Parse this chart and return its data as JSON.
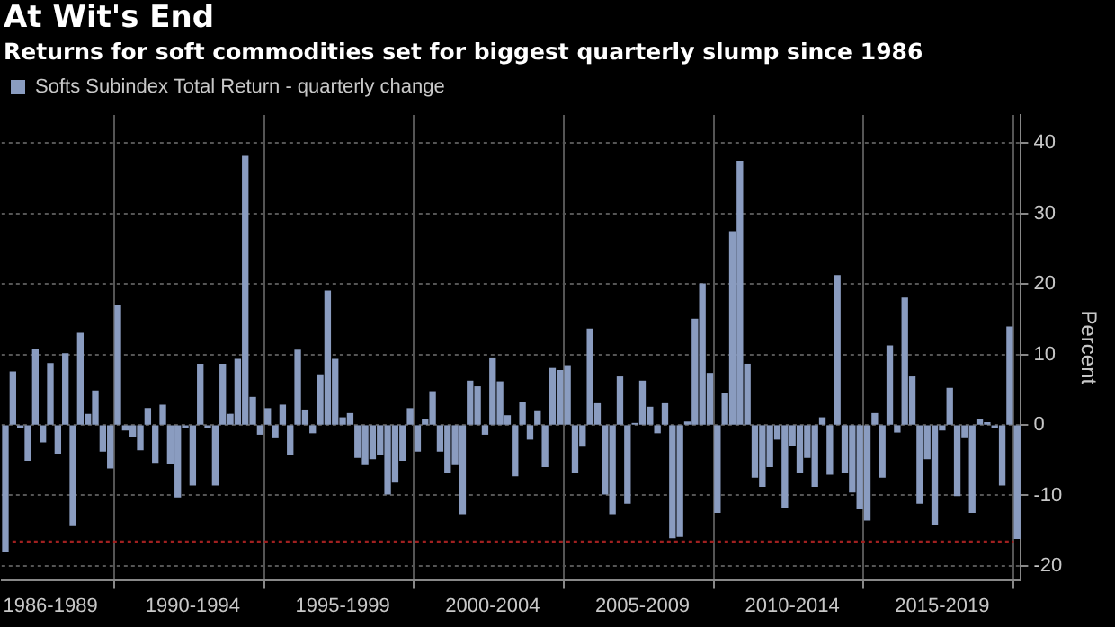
{
  "chart_data": {
    "type": "bar",
    "title": "At Wit's End",
    "subtitle": "Returns for soft commodities set for biggest quarterly slump since 1986",
    "ylabel": "Percent",
    "categories": [
      null,
      null,
      null,
      null,
      null,
      null,
      "1986-1989",
      null,
      null,
      null,
      null,
      null,
      null,
      null,
      null,
      null,
      null,
      null,
      null,
      null,
      null,
      null,
      null,
      null,
      null,
      "1990-1994",
      null,
      null,
      null,
      null,
      null,
      null,
      null,
      null,
      null,
      null,
      null,
      null,
      null,
      null,
      null,
      null,
      null,
      null,
      null,
      "1995-1999",
      null,
      null,
      null,
      null,
      null,
      null,
      null,
      null,
      null,
      null,
      null,
      null,
      null,
      null,
      null,
      null,
      null,
      null,
      null,
      "2000-2004",
      null,
      null,
      null,
      null,
      null,
      null,
      null,
      null,
      null,
      null,
      null,
      null,
      null,
      null,
      null,
      null,
      null,
      null,
      null,
      "2005-2009",
      null,
      null,
      null,
      null,
      null,
      null,
      null,
      null,
      null,
      null,
      null,
      null,
      null,
      null,
      null,
      null,
      null,
      null,
      null,
      "2010-2014",
      null,
      null,
      null,
      null,
      null,
      null,
      null,
      null,
      null,
      null,
      null,
      null,
      null,
      null,
      null,
      null,
      null,
      null,
      null,
      "2015-2019",
      null,
      null,
      null,
      null,
      null,
      null,
      null,
      null,
      null,
      null
    ],
    "series": [
      {
        "name": "Softs Subindex Total Return - quarterly change",
        "color": "#8a9cc0",
        "values": [
          -18,
          7.5,
          -0.4,
          -5,
          10.7,
          -2.4,
          8.7,
          -4,
          10.1,
          -14.3,
          13,
          1.5,
          4.8,
          -3.7,
          -6.1,
          17,
          -0.7,
          -1.7,
          -3.5,
          2.3,
          -5.3,
          2.8,
          -5.5,
          -10.2,
          -0.4,
          -8.5,
          8.6,
          -0.4,
          -8.5,
          8.6,
          1.5,
          9.3,
          38.1,
          3.9,
          -1.3,
          2.3,
          -1.8,
          2.8,
          -4.2,
          10.6,
          2.1,
          -1.1,
          7.1,
          19,
          9.3,
          1,
          1.6,
          -4.6,
          -5.6,
          -4.8,
          -4.2,
          -9.8,
          -8.1,
          -5,
          2.3,
          -3.7,
          0.8,
          4.7,
          -3.7,
          -6.8,
          -5.6,
          -12.6,
          6.2,
          5.4,
          -1.3,
          9.5,
          6.1,
          1.3,
          -7.2,
          3.2,
          -2,
          2,
          -5.9,
          8,
          7.7,
          8.4,
          -6.8,
          -3,
          13.6,
          3,
          -9.8,
          -12.6,
          6.8,
          -11.1,
          0.2,
          6.2,
          2.5,
          -1.1,
          3,
          -16,
          -15.8,
          0.4,
          15,
          20,
          7.3,
          -12.4,
          4.5,
          27.4,
          37.4,
          8.6,
          -7.4,
          -8.7,
          -5.9,
          -2,
          -11.7,
          -2.9,
          -6.8,
          -4.6,
          -8.7,
          1,
          -7,
          21.2,
          -6.8,
          -9.5,
          -11.9,
          -13.5,
          1.6,
          -7.4,
          11.2,
          -1,
          18,
          6.8,
          -11.1,
          -4.8,
          -14.1,
          -0.7,
          5.2,
          -10,
          -1.8,
          -12.4,
          0.8,
          0.3,
          -0.3,
          -8.5,
          13.9,
          -16.1
        ]
      }
    ],
    "ylim": [
      -22,
      44
    ],
    "yticks": [
      -20,
      -10,
      0,
      10,
      20,
      30,
      40
    ],
    "ref_lines": [
      {
        "axis": "y",
        "value": -16.6,
        "color": "#a02020",
        "line_style": "dotted"
      }
    ],
    "grid": true,
    "legend": "top left"
  }
}
